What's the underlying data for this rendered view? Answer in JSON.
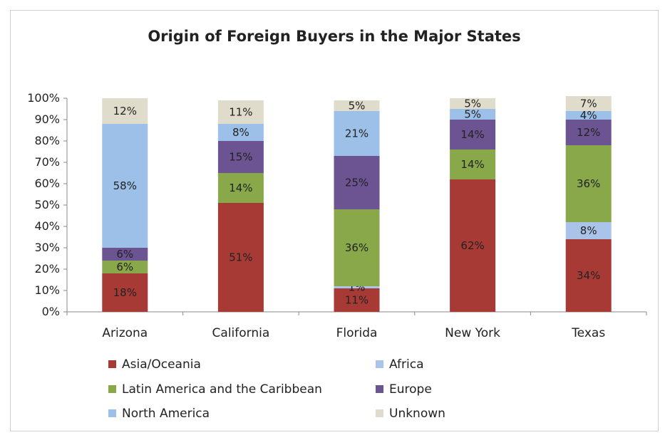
{
  "chart_data": {
    "type": "bar",
    "stacked": true,
    "title": "Origin of Foreign Buyers in the Major States",
    "xlabel": "",
    "ylabel": "",
    "ylim": [
      0,
      100
    ],
    "yticks": [
      "0%",
      "10%",
      "20%",
      "30%",
      "40%",
      "50%",
      "60%",
      "70%",
      "80%",
      "90%",
      "100%"
    ],
    "grid": false,
    "legend_position": "bottom",
    "categories": [
      "Arizona",
      "California",
      "Florida",
      "New York",
      "Texas"
    ],
    "series": [
      {
        "name": "Asia/Oceania",
        "color": "#a83a36",
        "values": [
          18,
          51,
          11,
          62,
          34
        ],
        "labels": [
          "18%",
          "51%",
          "11%",
          "62%",
          "34%"
        ]
      },
      {
        "name": "Africa",
        "color": "#a9c4e8",
        "values": [
          0,
          0,
          1,
          0,
          8
        ],
        "labels": [
          "",
          "",
          "1%",
          "",
          "8%"
        ]
      },
      {
        "name": "Latin America and the Caribbean",
        "color": "#88a84a",
        "values": [
          6,
          14,
          36,
          14,
          36
        ],
        "labels": [
          "6%",
          "14%",
          "36%",
          "14%",
          "36%"
        ]
      },
      {
        "name": "Europe",
        "color": "#6c5391",
        "values": [
          6,
          15,
          25,
          14,
          12
        ],
        "labels": [
          "6%",
          "15%",
          "25%",
          "14%",
          "12%"
        ]
      },
      {
        "name": "North America",
        "color": "#9cc0e8",
        "values": [
          58,
          8,
          21,
          5,
          4
        ],
        "labels": [
          "58%",
          "8%",
          "21%",
          "5%",
          "4%"
        ]
      },
      {
        "name": "Unknown",
        "color": "#e0dccb",
        "values": [
          12,
          11,
          5,
          5,
          7
        ],
        "labels": [
          "12%",
          "11%",
          "5%",
          "5%",
          "7%"
        ]
      }
    ]
  }
}
